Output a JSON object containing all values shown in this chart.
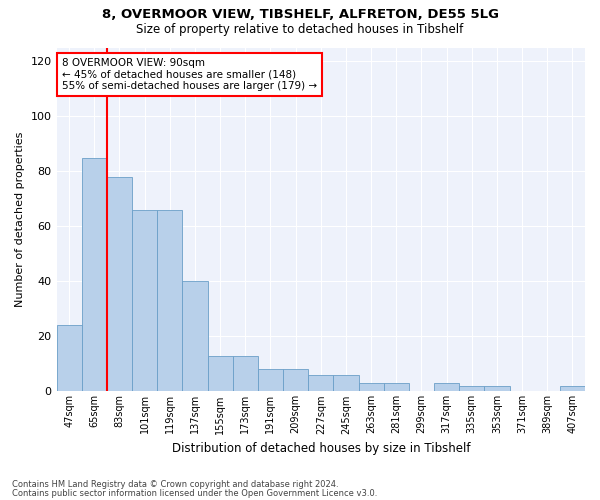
{
  "title1": "8, OVERMOOR VIEW, TIBSHELF, ALFRETON, DE55 5LG",
  "title2": "Size of property relative to detached houses in Tibshelf",
  "xlabel": "Distribution of detached houses by size in Tibshelf",
  "ylabel": "Number of detached properties",
  "categories": [
    "47sqm",
    "65sqm",
    "83sqm",
    "101sqm",
    "119sqm",
    "137sqm",
    "155sqm",
    "173sqm",
    "191sqm",
    "209sqm",
    "227sqm",
    "245sqm",
    "263sqm",
    "281sqm",
    "299sqm",
    "317sqm",
    "335sqm",
    "353sqm",
    "371sqm",
    "389sqm",
    "407sqm"
  ],
  "values": [
    24,
    85,
    78,
    66,
    66,
    40,
    13,
    13,
    8,
    8,
    6,
    6,
    3,
    3,
    0,
    3,
    2,
    2,
    0,
    0,
    2
  ],
  "bar_color": "#b8d0ea",
  "bar_edgecolor": "#6a9fc8",
  "vline_color": "red",
  "vline_pos": 1.5,
  "ylim": [
    0,
    125
  ],
  "yticks": [
    0,
    20,
    40,
    60,
    80,
    100,
    120
  ],
  "annotation_text": "8 OVERMOOR VIEW: 90sqm\n← 45% of detached houses are smaller (148)\n55% of semi-detached houses are larger (179) →",
  "annotation_box_color": "white",
  "annotation_box_edgecolor": "red",
  "footer1": "Contains HM Land Registry data © Crown copyright and database right 2024.",
  "footer2": "Contains public sector information licensed under the Open Government Licence v3.0.",
  "background_color": "#eef2fb"
}
